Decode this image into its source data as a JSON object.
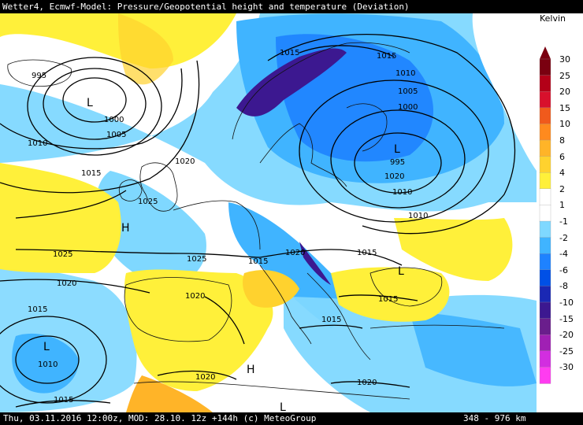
{
  "header": {
    "title": "Wetter4, Ecmwf-Model: Pressure/Geopotential height and temperature (Deviation)"
  },
  "footer": {
    "info": "Thu, 03.11.2016 12:00z, MOD: 28.10. 12z +144h (c) MeteoGroup",
    "scale": "348 - 976 km"
  },
  "legend": {
    "unit": "Kelvin",
    "entries": [
      {
        "label": "30",
        "color": "#7a0010"
      },
      {
        "label": "25",
        "color": "#b30018"
      },
      {
        "label": "20",
        "color": "#d8102c"
      },
      {
        "label": "15",
        "color": "#f05a1c"
      },
      {
        "label": "10",
        "color": "#ff8a1e"
      },
      {
        "label": "8",
        "color": "#ffb428"
      },
      {
        "label": "6",
        "color": "#ffd22e"
      },
      {
        "label": "4",
        "color": "#fff03a"
      },
      {
        "label": "2",
        "color": "#ffffff"
      },
      {
        "label": "1",
        "color": "#ffffff"
      },
      {
        "label": "-1",
        "color": "#7fd8ff"
      },
      {
        "label": "-2",
        "color": "#40b4ff"
      },
      {
        "label": "-4",
        "color": "#1e82ff"
      },
      {
        "label": "-6",
        "color": "#0050e6"
      },
      {
        "label": "-8",
        "color": "#1a28b4"
      },
      {
        "label": "-10",
        "color": "#3c1890"
      },
      {
        "label": "-15",
        "color": "#6a1e8c"
      },
      {
        "label": "-20",
        "color": "#a020b4"
      },
      {
        "label": "-25",
        "color": "#d22ee0"
      },
      {
        "label": "-30",
        "color": "#ff3cf0"
      }
    ]
  },
  "map": {
    "isobar_labels": [
      "995",
      "1000",
      "1005",
      "1010",
      "1015",
      "1020",
      "1025",
      "1015",
      "1010",
      "1005",
      "1000",
      "995",
      "1015",
      "1010",
      "1020",
      "1025",
      "1020",
      "1015",
      "1015",
      "1010",
      "1015",
      "1020",
      "1015",
      "1020",
      "1025",
      "1020",
      "1015",
      "1010",
      "1015",
      "1020"
    ],
    "pressure_centers": [
      "L",
      "H",
      "L",
      "L",
      "L",
      "H",
      "L"
    ]
  }
}
